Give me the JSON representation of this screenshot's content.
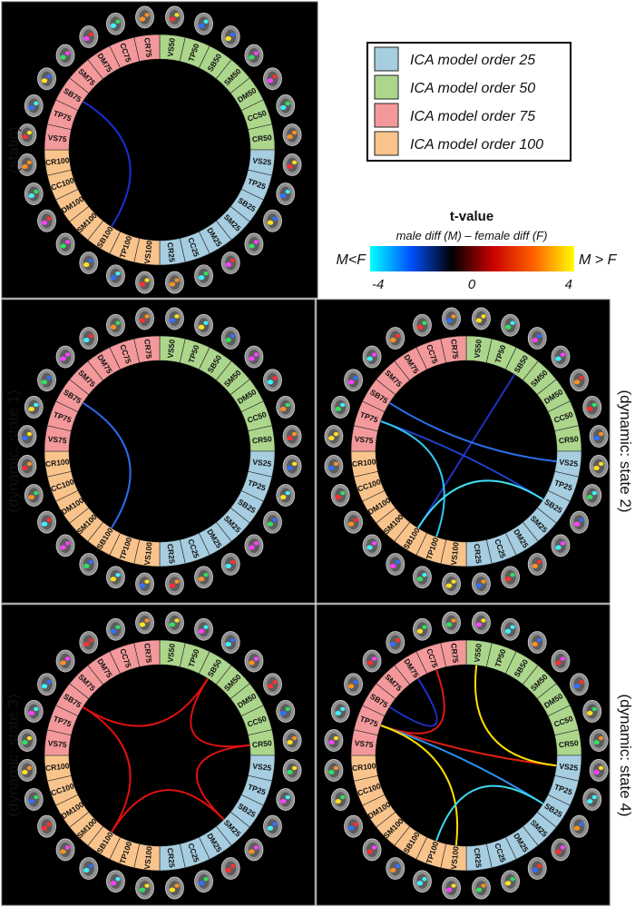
{
  "legend": {
    "items": [
      {
        "label": "ICA model order 25",
        "color": "#a6cde0"
      },
      {
        "label": "ICA model order 50",
        "color": "#acd68c"
      },
      {
        "label": "ICA model order 75",
        "color": "#f3999b"
      },
      {
        "label": "ICA model order 100",
        "color": "#f9c48c"
      }
    ]
  },
  "colorbar": {
    "title": "t-value",
    "subtitle": "male diff (M) – female diff (F)",
    "left_label": "M<F",
    "right_label": "M > F",
    "ticks": [
      "-4",
      "0",
      "4"
    ],
    "colors": [
      "#00ffff",
      "#0050ff",
      "#000000",
      "#c80000",
      "#ff6000",
      "#ffff00"
    ]
  },
  "segments": [
    {
      "label": "VS50",
      "group": 50
    },
    {
      "label": "TP50",
      "group": 50
    },
    {
      "label": "SB50",
      "group": 50
    },
    {
      "label": "SM50",
      "group": 50
    },
    {
      "label": "DM50",
      "group": 50
    },
    {
      "label": "CC50",
      "group": 50
    },
    {
      "label": "CR50",
      "group": 50
    },
    {
      "label": "VS25",
      "group": 25
    },
    {
      "label": "TP25",
      "group": 25
    },
    {
      "label": "SB25",
      "group": 25
    },
    {
      "label": "SM25",
      "group": 25
    },
    {
      "label": "DM25",
      "group": 25
    },
    {
      "label": "CC25",
      "group": 25
    },
    {
      "label": "CR25",
      "group": 25
    },
    {
      "label": "VS100",
      "group": 100
    },
    {
      "label": "TP100",
      "group": 100
    },
    {
      "label": "SB100",
      "group": 100
    },
    {
      "label": "SM100",
      "group": 100
    },
    {
      "label": "DM100",
      "group": 100
    },
    {
      "label": "CC100",
      "group": 100
    },
    {
      "label": "CR100",
      "group": 100
    },
    {
      "label": "VS75",
      "group": 75
    },
    {
      "label": "TP75",
      "group": 75
    },
    {
      "label": "SB75",
      "group": 75
    },
    {
      "label": "SM75",
      "group": 75
    },
    {
      "label": "DM75",
      "group": 75
    },
    {
      "label": "CC75",
      "group": 75
    },
    {
      "label": "CR75",
      "group": 75
    }
  ],
  "panels": [
    {
      "title": "(static)",
      "title_side": "left",
      "connections": [
        {
          "from": "SB75",
          "to": "SB100",
          "color": "#1a2fd0"
        }
      ]
    },
    {
      "title": "(dynamic: state 1)",
      "title_side": "left",
      "connections": [
        {
          "from": "SB75",
          "to": "SB100",
          "color": "#2a6cf0"
        }
      ]
    },
    {
      "title": "(dynamic: state 2)",
      "title_side": "right",
      "connections": [
        {
          "from": "SB50",
          "to": "SB100",
          "color": "#2030c0"
        },
        {
          "from": "SB75",
          "to": "VS25",
          "color": "#2a70f0"
        },
        {
          "from": "TP75",
          "to": "SB25",
          "color": "#2040c8"
        },
        {
          "from": "TP75",
          "to": "TP100",
          "color": "#30c8f0"
        },
        {
          "from": "SB100",
          "to": "SB25",
          "color": "#40e0f8"
        }
      ]
    },
    {
      "title": "(dynamic: state 3)",
      "title_side": "left",
      "connections": [
        {
          "from": "SB75",
          "to": "SB100",
          "color": "#e01010"
        },
        {
          "from": "SB75",
          "to": "SB50",
          "color": "#e01010"
        },
        {
          "from": "SB100",
          "to": "SM25",
          "color": "#e01010"
        },
        {
          "from": "SB50",
          "to": "CR50",
          "color": "#e01010"
        },
        {
          "from": "CR50",
          "to": "SM25",
          "color": "#e01010"
        }
      ]
    },
    {
      "title": "(dynamic: state 4)",
      "title_side": "right",
      "connections": [
        {
          "from": "SB75",
          "to": "DM75",
          "color": "#2030c8"
        },
        {
          "from": "TP75",
          "to": "CC75",
          "color": "#e01818"
        },
        {
          "from": "TP75",
          "to": "VS25",
          "color": "#e02010"
        },
        {
          "from": "TP75",
          "to": "SB25",
          "color": "#2a90f0"
        },
        {
          "from": "TP75",
          "to": "VS100",
          "color": "#ffe000"
        },
        {
          "from": "VS50",
          "to": "VS25",
          "color": "#ffe000"
        },
        {
          "from": "TP100",
          "to": "SB25",
          "color": "#40d8f0"
        }
      ]
    }
  ],
  "brain_palette": [
    "#ff3030",
    "#3070ff",
    "#ffe020",
    "#30e060",
    "#ff40ff",
    "#40f0ff",
    "#ff9020"
  ]
}
